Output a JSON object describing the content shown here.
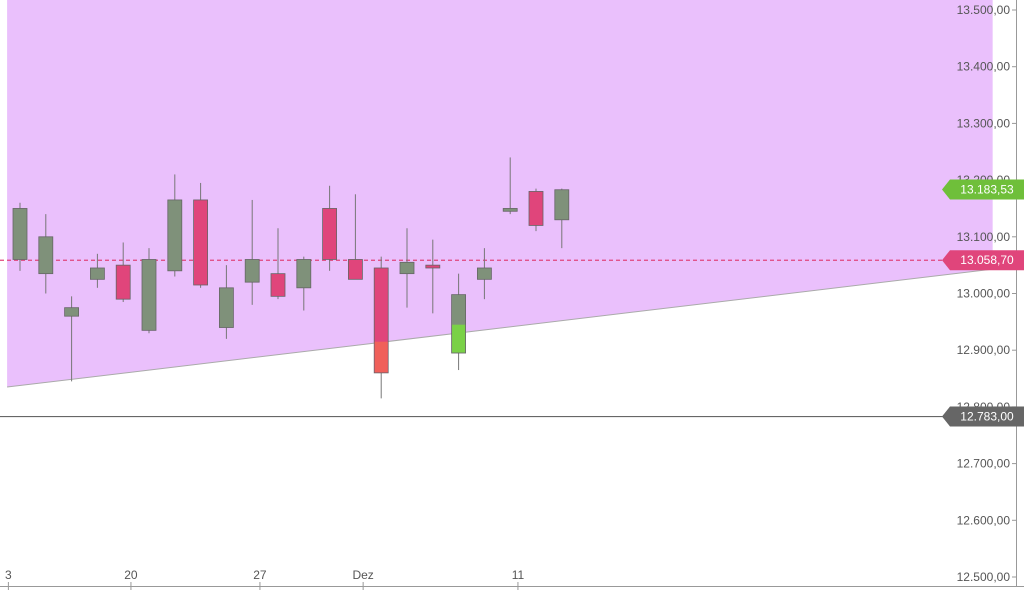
{
  "chart_data": {
    "type": "candlestick",
    "y_range": [
      12495,
      13535
    ],
    "y_ticks": [
      {
        "value": 13500,
        "label": "13.500,00"
      },
      {
        "value": 13400,
        "label": "13.400,00"
      },
      {
        "value": 13300,
        "label": "13.300,00"
      },
      {
        "value": 13200,
        "label": "13.200,00"
      },
      {
        "value": 13100,
        "label": "13.100,00"
      },
      {
        "value": 13000,
        "label": "13.000,00"
      },
      {
        "value": 12900,
        "label": "12.900,00"
      },
      {
        "value": 12800,
        "label": "12.800,00"
      },
      {
        "value": 12700,
        "label": "12.700,00"
      },
      {
        "value": 12600,
        "label": "12.600,00"
      },
      {
        "value": 12500,
        "label": "12.500,00"
      }
    ],
    "x_labels": [
      {
        "index": -0.45,
        "label": "3"
      },
      {
        "index": 4.3,
        "label": "20"
      },
      {
        "index": 9.3,
        "label": "27"
      },
      {
        "index": 13.3,
        "label": "Dez"
      },
      {
        "index": 19.3,
        "label": "11"
      }
    ],
    "candles": [
      {
        "o": 13060,
        "h": 13160,
        "l": 13040,
        "c": 13150
      },
      {
        "o": 13035,
        "h": 13140,
        "l": 13000,
        "c": 13100
      },
      {
        "o": 12960,
        "h": 12995,
        "l": 12845,
        "c": 12975
      },
      {
        "o": 13025,
        "h": 13070,
        "l": 13010,
        "c": 13045
      },
      {
        "o": 13050,
        "h": 13090,
        "l": 12985,
        "c": 12990
      },
      {
        "o": 12935,
        "h": 13080,
        "l": 12930,
        "c": 13060
      },
      {
        "o": 13040,
        "h": 13210,
        "l": 13030,
        "c": 13165
      },
      {
        "o": 13165,
        "h": 13195,
        "l": 13010,
        "c": 13015
      },
      {
        "o": 12940,
        "h": 13050,
        "l": 12920,
        "c": 13010
      },
      {
        "o": 13020,
        "h": 13165,
        "l": 12980,
        "c": 13060
      },
      {
        "o": 13035,
        "h": 13115,
        "l": 12990,
        "c": 12995
      },
      {
        "o": 13010,
        "h": 13065,
        "l": 12970,
        "c": 13060
      },
      {
        "o": 13150,
        "h": 13190,
        "l": 13040,
        "c": 13060
      },
      {
        "o": 13060,
        "h": 13175,
        "l": 13025,
        "c": 13025
      },
      {
        "o": 13045,
        "h": 13065,
        "l": 12815,
        "c": 12860
      },
      {
        "o": 13035,
        "h": 13115,
        "l": 12975,
        "c": 13055
      },
      {
        "o": 13050,
        "h": 13095,
        "l": 12965,
        "c": 13045
      },
      {
        "o": 12895,
        "h": 13035,
        "l": 12865,
        "c": 12998
      },
      {
        "o": 13025,
        "h": 13080,
        "l": 12990,
        "c": 13045
      },
      {
        "o": 13145,
        "h": 13240,
        "l": 13140,
        "c": 13150
      },
      {
        "o": 13180,
        "h": 13185,
        "l": 13110,
        "c": 13120
      },
      {
        "o": 13130,
        "h": 13185,
        "l": 13080,
        "c": 13183
      }
    ],
    "channel": {
      "upper": [
        {
          "x": -0.5,
          "y": 13640
        },
        {
          "x": 37.7,
          "y": 14098
        }
      ],
      "lower": [
        {
          "x": -0.5,
          "y": 12835
        },
        {
          "x": 37.7,
          "y": 13043
        }
      ]
    },
    "reference_lines": [
      {
        "value": 13058.7,
        "label": "13.058,70",
        "color": "#e0457b",
        "style": "dashed"
      },
      {
        "value": 12783.0,
        "label": "12.783,00",
        "color": "#666666",
        "style": "solid"
      }
    ],
    "last_price": {
      "value": 13183.53,
      "label": "13.183,53",
      "color": "#6fbf3a"
    },
    "colors": {
      "bull": "#e0457b",
      "bear": "#7f917a",
      "bear_highlight": "#7ad147",
      "bull_highlight": "#f0605a",
      "wick": "#777777",
      "channel_fill": "#eac0fc",
      "channel_edge": "#aaaaaa",
      "tick_text": "#555555"
    }
  }
}
